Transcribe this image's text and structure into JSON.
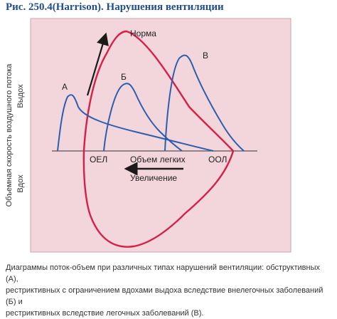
{
  "figure": {
    "title": "Рис. 250.4(Harrison). Нарушения вентиляции",
    "caption_lines": [
      "Диаграммы поток-объем при различных типах нарушений вентиляции: обструктивных (А),",
      "рестриктивных с ограничением вдохами выдоха вследствие внелегочных заболеваний (Б) и",
      "рестриктивных вследствие легочных заболеваний (В)."
    ]
  },
  "diagram": {
    "y_axis_label": "Объемная скорость воздушного потока",
    "exhale_label": "Выдох",
    "inhale_label": "Вдох",
    "curve_labels": {
      "normal": "Норма",
      "a": "А",
      "b": "Б",
      "c": "В"
    },
    "x_labels": {
      "oel": "ОЕЛ",
      "lung_volume": "Объем легких",
      "ool": "ООЛ",
      "increase": "Увеличение"
    },
    "colors": {
      "panel_bg": "#f3d5dc",
      "normal_curve": "#d6204a",
      "disease_curves": "#2b5fae",
      "axis": "#555555",
      "arrow": "#1a1a1a"
    }
  }
}
